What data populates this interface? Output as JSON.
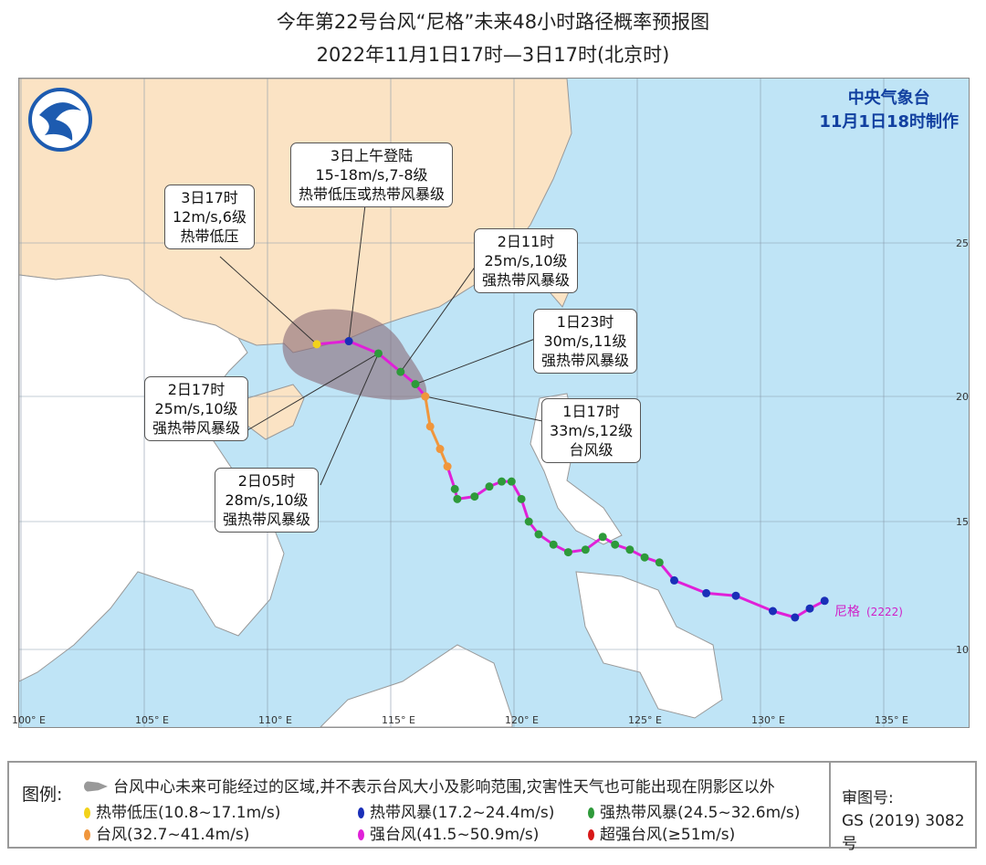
{
  "title": {
    "line1": "今年第22号台风“尼格”未来48小时路径概率预报图",
    "line2": "2022年11月1日17时—3日17时(北京时)"
  },
  "agency": {
    "name": "中央气象台",
    "made": "11月1日18时制作"
  },
  "logo": {
    "icon": "cma-logo-icon"
  },
  "axes": {
    "lon_ticks": [
      "100° E",
      "105° E",
      "110° E",
      "115° E",
      "120° E",
      "125° E",
      "130° E",
      "135° E"
    ],
    "lat_ticks": [
      "10",
      "15",
      "20",
      "25"
    ]
  },
  "typhoon_label": "尼格",
  "typhoon_code": "(2222)",
  "callouts": [
    {
      "time": "3日17时",
      "wind": "12m/s,6级",
      "level": "热带低压"
    },
    {
      "time": "3日上午登陆",
      "wind": "15-18m/s,7-8级",
      "level": "热带低压或热带风暴级"
    },
    {
      "time": "2日11时",
      "wind": "25m/s,10级",
      "level": "强热带风暴级"
    },
    {
      "time": "1日23时",
      "wind": "30m/s,11级",
      "level": "强热带风暴级"
    },
    {
      "time": "1日17时",
      "wind": "33m/s,12级",
      "level": "台风级"
    },
    {
      "time": "2日05时",
      "wind": "28m/s,10级",
      "level": "强热带风暴级"
    },
    {
      "time": "2日17时",
      "wind": "25m/s,10级",
      "level": "强热带风暴级"
    }
  ],
  "colors": {
    "TD": "#f2d21a",
    "TS": "#1a2fb8",
    "STS": "#2e9a3a",
    "TY": "#f0963c",
    "STY": "#e020d8",
    "SuperTY": "#d81818",
    "sea": "#bfe4f6",
    "china": "#fbe3c4",
    "land": "#ffffff",
    "cone": "#8a6a78"
  },
  "track_past": [
    [
      132.6,
      11.9,
      "TS"
    ],
    [
      132.0,
      11.6,
      "TS"
    ],
    [
      131.4,
      11.25,
      "TS"
    ],
    [
      130.5,
      11.5,
      "TS"
    ],
    [
      129.0,
      12.1,
      "TS"
    ],
    [
      127.8,
      12.2,
      "TS"
    ],
    [
      126.5,
      12.7,
      "TS"
    ],
    [
      125.9,
      13.4,
      "STS"
    ],
    [
      125.3,
      13.6,
      "STS"
    ],
    [
      124.7,
      13.9,
      "STS"
    ],
    [
      124.1,
      14.1,
      "STS"
    ],
    [
      123.6,
      14.4,
      "STS"
    ],
    [
      122.9,
      13.9,
      "STS"
    ],
    [
      122.2,
      13.8,
      "STS"
    ],
    [
      121.6,
      14.1,
      "STS"
    ],
    [
      121.0,
      14.5,
      "STS"
    ],
    [
      120.6,
      15.0,
      "STS"
    ],
    [
      120.3,
      15.9,
      "STS"
    ],
    [
      119.9,
      16.6,
      "STS"
    ],
    [
      119.5,
      16.6,
      "STS"
    ],
    [
      119.0,
      16.4,
      "STS"
    ],
    [
      118.4,
      16.0,
      "STS"
    ],
    [
      117.7,
      15.9,
      "STS"
    ],
    [
      117.6,
      16.3,
      "STS"
    ],
    [
      117.3,
      17.2,
      "TY"
    ],
    [
      117.0,
      17.9,
      "TY"
    ],
    [
      116.6,
      18.8,
      "TY"
    ],
    [
      116.4,
      20.0,
      "TY"
    ]
  ],
  "track_forecast": [
    [
      116.4,
      20.0,
      "TY"
    ],
    [
      116.0,
      20.4,
      "STS"
    ],
    [
      115.4,
      20.8,
      "STS"
    ],
    [
      114.5,
      21.4,
      "STS"
    ],
    [
      113.3,
      21.8,
      "TS"
    ],
    [
      112.0,
      21.7,
      "TD"
    ]
  ],
  "legend": {
    "title": "图例:",
    "cone": "台风中心未来可能经过的区域,并不表示台风大小及影响范围,灾害性天气也可能出现在阴影区以外",
    "items": [
      {
        "key": "TD",
        "label": "热带低压(10.8~17.1m/s)"
      },
      {
        "key": "TS",
        "label": "热带风暴(17.2~24.4m/s)"
      },
      {
        "key": "STS",
        "label": "强热带风暴(24.5~32.6m/s)"
      },
      {
        "key": "TY",
        "label": "台风(32.7~41.4m/s)"
      },
      {
        "key": "STY",
        "label": "强台风(41.5~50.9m/s)"
      },
      {
        "key": "SuperTY",
        "label": "超强台风(≥51m/s)"
      }
    ],
    "review_label": "审图号:",
    "review_no": "GS (2019) 3082号"
  }
}
